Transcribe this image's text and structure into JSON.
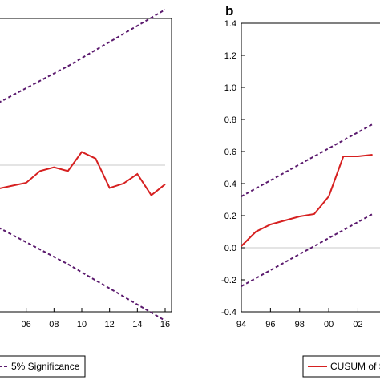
{
  "chart_data": [
    {
      "type": "line",
      "panel": "",
      "x": [
        2004,
        2005,
        2006,
        2007,
        2008,
        2009,
        2010,
        2011,
        2012,
        2013,
        2014,
        2015,
        2016
      ],
      "x_tick_labels": [
        "06",
        "08",
        "10",
        "12",
        "14",
        "16"
      ],
      "x_tick_values": [
        2006,
        2008,
        2010,
        2012,
        2014,
        2016
      ],
      "xlim": [
        2004,
        2016
      ],
      "ylim": [
        -20,
        20
      ],
      "zero_line": 0,
      "series": [
        {
          "name": "",
          "color": "#d62020",
          "style": "solid",
          "values": [
            -3.2,
            -2.8,
            -2.4,
            -0.8,
            -0.3,
            -0.8,
            1.8,
            0.9,
            -3.1,
            -2.5,
            -1.2,
            -4.1,
            -2.6
          ]
        },
        {
          "name": "5% Significance",
          "color": "#5b1a6e",
          "style": "dashed",
          "values": [
            8.5,
            9.5,
            10.5,
            11.5,
            12.5,
            13.5,
            14.6,
            15.7,
            16.8,
            17.9,
            19.0,
            20.1,
            21.2
          ]
        },
        {
          "name": "5% Significance",
          "color": "#5b1a6e",
          "style": "dashed",
          "values": [
            -8.5,
            -9.5,
            -10.5,
            -11.5,
            -12.5,
            -13.5,
            -14.6,
            -15.7,
            -16.8,
            -17.9,
            -19.0,
            -20.1,
            -21.2
          ]
        }
      ],
      "legend": [
        "5% Significance"
      ],
      "legend_position": "bottom"
    },
    {
      "type": "line",
      "panel": "b",
      "x": [
        1994,
        1995,
        1996,
        1997,
        1998,
        1999,
        2000,
        2001,
        2002,
        2003
      ],
      "x_tick_labels": [
        "94",
        "96",
        "98",
        "00",
        "02"
      ],
      "x_tick_values": [
        1994,
        1996,
        1998,
        2000,
        2002
      ],
      "xlim": [
        1994,
        2003.9
      ],
      "ylim": [
        -0.4,
        1.4
      ],
      "y_tick_labels": [
        "1.4",
        "1.2",
        "1.0",
        "0.8",
        "0.6",
        "0.4",
        "0.2",
        "0.0",
        "-0.2",
        "-0.4"
      ],
      "y_tick_values": [
        1.4,
        1.2,
        1.0,
        0.8,
        0.6,
        0.4,
        0.2,
        0.0,
        -0.2,
        -0.4
      ],
      "zero_line": 0,
      "series": [
        {
          "name": "CUSUM of S",
          "color": "#d62020",
          "style": "solid",
          "values": [
            0.01,
            0.1,
            0.145,
            0.17,
            0.195,
            0.21,
            0.32,
            0.57,
            0.57,
            0.58
          ]
        },
        {
          "name": "",
          "color": "#5b1a6e",
          "style": "dashed",
          "values": [
            0.32,
            0.37,
            0.42,
            0.47,
            0.52,
            0.57,
            0.62,
            0.67,
            0.72,
            0.77
          ]
        },
        {
          "name": "",
          "color": "#5b1a6e",
          "style": "dashed",
          "values": [
            -0.24,
            -0.19,
            -0.14,
            -0.09,
            -0.04,
            0.01,
            0.06,
            0.11,
            0.16,
            0.21
          ]
        }
      ],
      "legend": [
        "CUSUM of S"
      ],
      "legend_position": "bottom"
    }
  ]
}
